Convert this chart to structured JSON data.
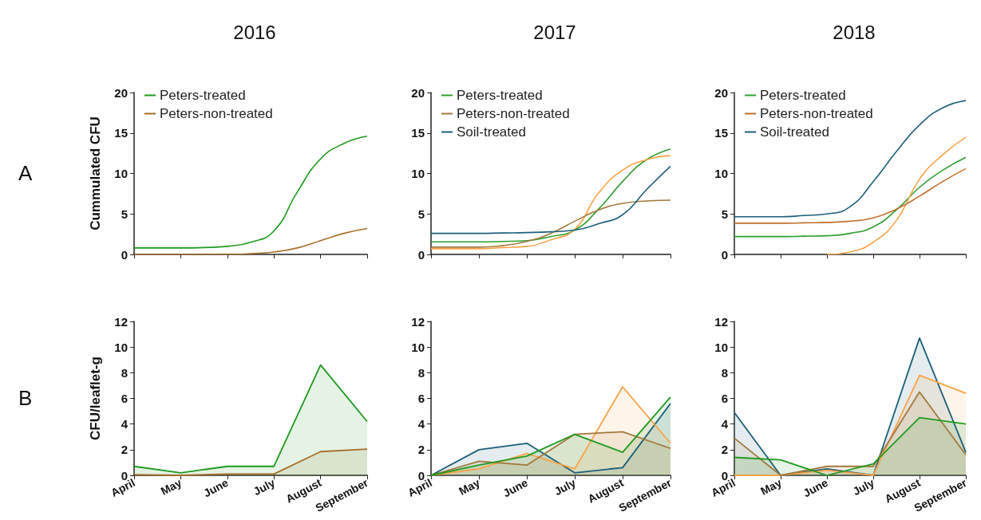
{
  "chart_data": [
    {
      "type": "line",
      "title": "2016",
      "ylabel": "Cummulated CFU",
      "annotations": [
        "A"
      ],
      "legend": "top left",
      "tick_labels": "y",
      "categories": [
        null,
        null,
        null,
        null,
        null,
        null,
        null,
        null,
        null,
        null,
        null
      ],
      "ylim": [
        0,
        20
      ],
      "yticks": [
        0,
        5,
        10,
        15,
        20
      ],
      "series": [
        {
          "name": "Peters-treated",
          "color": "#1f9a1f",
          "values": [
            0.8,
            0.8,
            0.8,
            0.85,
            1.0,
            1.5,
            2.9,
            7.7,
            11.8,
            13.7,
            14.6
          ]
        },
        {
          "name": "Peters-non-treated",
          "color": "#a86f2b",
          "values": [
            0,
            0,
            0,
            0,
            0,
            0.1,
            0.3,
            0.8,
            1.7,
            2.6,
            3.2
          ]
        }
      ]
    },
    {
      "type": "line",
      "title": "2017",
      "legend": "top left",
      "tick_labels": "y",
      "categories": [
        null,
        null,
        null,
        null,
        null,
        null,
        null,
        null,
        null,
        null,
        null
      ],
      "ylim": [
        0,
        20
      ],
      "yticks": [
        0,
        5,
        10,
        15,
        20
      ],
      "series": [
        {
          "name": "Peters-treated",
          "color": "#2e9e2e",
          "values": [
            1.55,
            1.55,
            1.55,
            1.6,
            1.7,
            2.2,
            3.0,
            5.6,
            9.0,
            11.7,
            13.0
          ]
        },
        {
          "color": "#f9a346",
          "values": [
            0.7,
            0.7,
            0.7,
            0.85,
            1.0,
            1.8,
            3.1,
            7.6,
            10.4,
            11.7,
            12.2
          ]
        },
        {
          "name": "Peters-non-treated",
          "color": "#a2783c",
          "values": [
            0.9,
            0.9,
            0.9,
            1.1,
            1.6,
            2.6,
            4.1,
            5.5,
            6.3,
            6.6,
            6.7
          ]
        },
        {
          "name": "Soil-treated",
          "color": "#1d5f7a",
          "values": [
            2.6,
            2.6,
            2.6,
            2.65,
            2.7,
            2.8,
            3.0,
            3.8,
            4.9,
            8.0,
            10.9
          ]
        }
      ]
    },
    {
      "type": "line",
      "title": "2018",
      "legend": "top left",
      "tick_labels": "y",
      "categories": [
        null,
        null,
        null,
        null,
        null,
        null,
        null,
        null,
        null,
        null,
        null
      ],
      "ylim": [
        0,
        20
      ],
      "yticks": [
        0,
        5,
        10,
        15,
        20
      ],
      "series": [
        {
          "name": "Peters-treated",
          "color": "#2e9e2e",
          "values": [
            2.2,
            2.2,
            2.2,
            2.25,
            2.3,
            2.6,
            3.4,
            5.5,
            8.3,
            10.4,
            12.0
          ]
        },
        {
          "color": "#f9a346",
          "values": [
            null,
            null,
            null,
            null,
            0,
            0.3,
            1.5,
            4.2,
            9.3,
            12.3,
            14.5
          ]
        },
        {
          "name": "Peters-non-treated",
          "color": "#c0702e",
          "values": [
            3.85,
            3.85,
            3.85,
            3.9,
            3.95,
            4.1,
            4.5,
            5.6,
            7.2,
            9.0,
            10.6
          ]
        },
        {
          "name": "Soil-treated",
          "color": "#1d5f7a",
          "values": [
            4.65,
            4.65,
            4.65,
            4.8,
            5.0,
            5.9,
            9.0,
            12.7,
            16.0,
            18.1,
            19.0
          ]
        }
      ]
    },
    {
      "type": "area",
      "ylabel": "CFU/leaflet-g",
      "annotations": [
        "B"
      ],
      "categories": [
        "April",
        "May",
        "June",
        "July",
        "August",
        "September"
      ],
      "ylim": [
        0,
        12
      ],
      "yticks": [
        0,
        2,
        4,
        6,
        8,
        10,
        12
      ],
      "series": [
        {
          "color": "#a86f2b",
          "values": [
            0.05,
            0,
            0.1,
            0.1,
            1.85,
            2.05
          ]
        },
        {
          "color": "#1f9a1f",
          "values": [
            0.7,
            0.2,
            0.7,
            0.7,
            8.6,
            4.2
          ]
        }
      ]
    },
    {
      "type": "area",
      "categories": [
        "April",
        "May",
        "June",
        "July",
        "August",
        "September"
      ],
      "ylim": [
        0,
        12
      ],
      "yticks": [
        0,
        2,
        4,
        6,
        8,
        10,
        12
      ],
      "series": [
        {
          "color": "#1d5f7a",
          "values": [
            0,
            2.0,
            2.5,
            0.2,
            0.6,
            5.6
          ]
        },
        {
          "color": "#f9a346",
          "values": [
            0,
            0.5,
            1.7,
            0.5,
            6.9,
            2.5
          ]
        },
        {
          "color": "#a2783c",
          "values": [
            0,
            1.1,
            0.8,
            3.2,
            3.4,
            2.1
          ]
        },
        {
          "color": "#1f9a1f",
          "values": [
            0,
            0.8,
            1.5,
            3.2,
            1.8,
            6.1
          ]
        }
      ]
    },
    {
      "type": "area",
      "categories": [
        "April",
        "May",
        "June",
        "July",
        "August",
        "September"
      ],
      "ylim": [
        0,
        12
      ],
      "yticks": [
        0,
        2,
        4,
        6,
        8,
        10,
        12
      ],
      "series": [
        {
          "color": "#1d5f7a",
          "values": [
            4.9,
            0,
            0.5,
            0,
            10.7,
            1.8
          ]
        },
        {
          "color": "#f9a346",
          "values": [
            0,
            0,
            0.4,
            0,
            7.8,
            6.4
          ]
        },
        {
          "color": "#a2783c",
          "values": [
            2.9,
            0,
            0.7,
            0.7,
            6.5,
            1.6
          ]
        },
        {
          "color": "#1f9a1f",
          "values": [
            1.4,
            1.2,
            0,
            0.9,
            4.5,
            4.0
          ]
        }
      ]
    }
  ]
}
